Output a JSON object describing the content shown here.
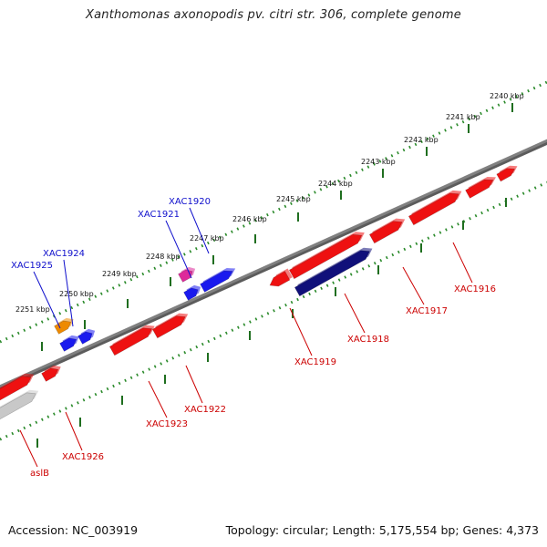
{
  "title": "Xanthomonas axonopodis pv. citri str. 306, complete genome",
  "footer": {
    "accession": "Accession: NC_003919",
    "info": "Topology: circular; Length: 5,175,554 bp; Genes: 4,373"
  },
  "colors": {
    "backbone": "#808080",
    "tick_dots": "#2a8a2a",
    "tick_major": "#1f6e1f",
    "gene_red": "#ee1111",
    "gene_blue": "#1a1aee",
    "gene_navy": "#10107a",
    "gene_orange": "#ee8a00",
    "gene_magenta": "#dd2a9a",
    "gene_gray": "#c8c8c8",
    "label_blue": "#1010cc",
    "label_red": "#cc0000"
  },
  "ticks": [
    {
      "label": "2240 kbp"
    },
    {
      "label": "2241 kbp"
    },
    {
      "label": "2242 kbp"
    },
    {
      "label": "2243 kbp"
    },
    {
      "label": "2244 kbp"
    },
    {
      "label": "2245 kbp"
    },
    {
      "label": "2246 kbp"
    },
    {
      "label": "2247 kbp"
    },
    {
      "label": "2248 kbp"
    },
    {
      "label": "2249 kbp"
    },
    {
      "label": "2250 kbp"
    },
    {
      "label": "2251 kbp"
    }
  ],
  "gene_labels": [
    {
      "text": "XAC1920",
      "color": "label_blue"
    },
    {
      "text": "XAC1921",
      "color": "label_blue"
    },
    {
      "text": "XAC1924",
      "color": "label_blue"
    },
    {
      "text": "XAC1925",
      "color": "label_blue"
    },
    {
      "text": "XAC1916",
      "color": "label_red"
    },
    {
      "text": "XAC1917",
      "color": "label_red"
    },
    {
      "text": "XAC1918",
      "color": "label_red"
    },
    {
      "text": "XAC1919",
      "color": "label_red"
    },
    {
      "text": "XAC1922",
      "color": "label_red"
    },
    {
      "text": "XAC1923",
      "color": "label_red"
    },
    {
      "text": "XAC1926",
      "color": "label_red"
    },
    {
      "text": "aslB",
      "color": "label_red"
    }
  ]
}
